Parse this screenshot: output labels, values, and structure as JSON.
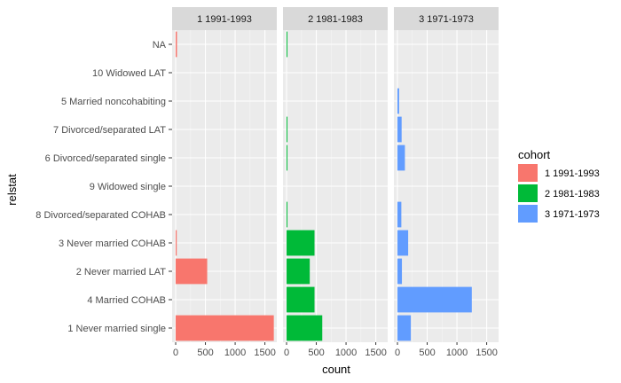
{
  "chart_data": {
    "type": "bar",
    "orientation": "horizontal",
    "facet_by": "cohort",
    "xlabel": "count",
    "ylabel": "relstat",
    "xlim": [
      -60,
      1700
    ],
    "x_ticks": [
      0,
      500,
      1000,
      1500
    ],
    "categories": [
      "NA",
      "10 Widowed LAT",
      "5 Married noncohabiting",
      "7 Divorced/separated LAT",
      "6 Divorced/separated single",
      "9 Widowed single",
      "8 Divorced/separated COHAB",
      "3 Never married COHAB",
      "2 Never married LAT",
      "4 Married COHAB",
      "1 Never married single"
    ],
    "legend": {
      "title": "cohort",
      "position": "right"
    },
    "grid": true,
    "series": [
      {
        "name": "1 1991-1993",
        "color": "#F8766D",
        "values": [
          22,
          0,
          0,
          0,
          0,
          0,
          0,
          18,
          530,
          0,
          1650
        ]
      },
      {
        "name": "2 1981-1983",
        "color": "#00BA38",
        "values": [
          12,
          0,
          0,
          10,
          12,
          0,
          15,
          470,
          390,
          470,
          600
        ]
      },
      {
        "name": "3 1971-1973",
        "color": "#619CFF",
        "values": [
          0,
          0,
          28,
          70,
          125,
          0,
          65,
          180,
          75,
          1250,
          225
        ]
      }
    ]
  }
}
